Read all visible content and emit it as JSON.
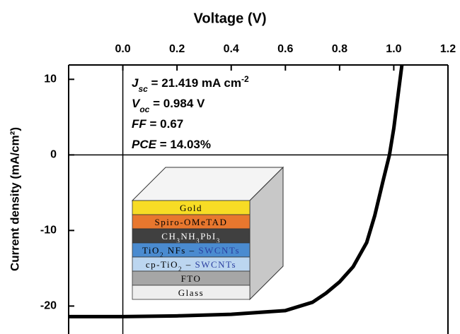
{
  "chart_data": {
    "type": "line",
    "title": "Voltage (V)",
    "y_label": "Current density (mA/cm²)",
    "x": [
      -0.2,
      0,
      0.2,
      0.4,
      0.6,
      0.7,
      0.75,
      0.8,
      0.85,
      0.9,
      0.93,
      0.96,
      0.984,
      1.0,
      1.03
    ],
    "series": [
      {
        "color": "#000000",
        "values": [
          -21.4,
          -21.4,
          -21.3,
          -21.1,
          -20.6,
          -19.5,
          -18.3,
          -16.8,
          -14.8,
          -11.6,
          -8.0,
          -3.5,
          0,
          3.5,
          11.9
        ]
      }
    ],
    "xlim": [
      -0.2,
      1.2
    ],
    "xticks": [
      {
        "value": 0,
        "label": "0.0"
      },
      0.2,
      0.4,
      0.6,
      0.8,
      {
        "value": 1,
        "label": "1.0"
      },
      1.2
    ],
    "ylim": [
      -23.7,
      11.9
    ],
    "yticks": [
      10,
      0,
      -10,
      -20
    ],
    "x_axis_position": "top",
    "zero_lines": true,
    "annotations": [
      [
        {
          "text": "J",
          "style": "i"
        },
        {
          "text": "sc",
          "style": "sub"
        },
        {
          "text": " = 21.419 mA cm",
          "style": "n"
        },
        {
          "text": "-2",
          "style": "sup"
        }
      ],
      [
        {
          "text": "V",
          "style": "i"
        },
        {
          "text": "oc",
          "style": "sub"
        },
        {
          "text": " = 0.984 V",
          "style": "n"
        }
      ],
      [
        {
          "text": "FF",
          "style": "i"
        },
        {
          "text": " = 0.67",
          "style": "n"
        }
      ],
      [
        {
          "text": "PCE",
          "style": "i"
        },
        {
          "text": " = 14.03%",
          "style": "n"
        }
      ]
    ],
    "inset_layers": [
      {
        "color": "#f7dc25",
        "ink": "#000",
        "parts": [
          {
            "text": "Gold",
            "style": "n"
          }
        ]
      },
      {
        "color": "#e8772e",
        "ink": "#000",
        "parts": [
          {
            "text": "Spiro-OMeTAD",
            "style": "n"
          }
        ]
      },
      {
        "color": "#404040",
        "ink": "#fff",
        "parts": [
          {
            "text": "CH",
            "style": "n"
          },
          {
            "text": "3",
            "style": "sub"
          },
          {
            "text": "NH",
            "style": "n"
          },
          {
            "text": "3",
            "style": "sub"
          },
          {
            "text": "PbI",
            "style": "n"
          },
          {
            "text": "3",
            "style": "sub"
          }
        ]
      },
      {
        "color": "#4a8bd0",
        "ink": "#000",
        "parts": [
          {
            "text": "TiO",
            "style": "n"
          },
          {
            "text": "2",
            "style": "sub"
          },
          {
            "text": " NFs – ",
            "style": "n"
          },
          {
            "text": "SWCNTs",
            "style": "hl"
          }
        ]
      },
      {
        "color": "#bcd6f0",
        "ink": "#000",
        "parts": [
          {
            "text": "cp-TiO",
            "style": "n"
          },
          {
            "text": "2",
            "style": "sub"
          },
          {
            "text": " – ",
            "style": "n"
          },
          {
            "text": "SWCNTs",
            "style": "hl"
          }
        ]
      },
      {
        "color": "#a6a6a6",
        "ink": "#000",
        "parts": [
          {
            "text": "FTO",
            "style": "n"
          }
        ]
      },
      {
        "color": "#eeeeee",
        "ink": "#000",
        "parts": [
          {
            "text": "Glass",
            "style": "n"
          }
        ]
      }
    ]
  }
}
